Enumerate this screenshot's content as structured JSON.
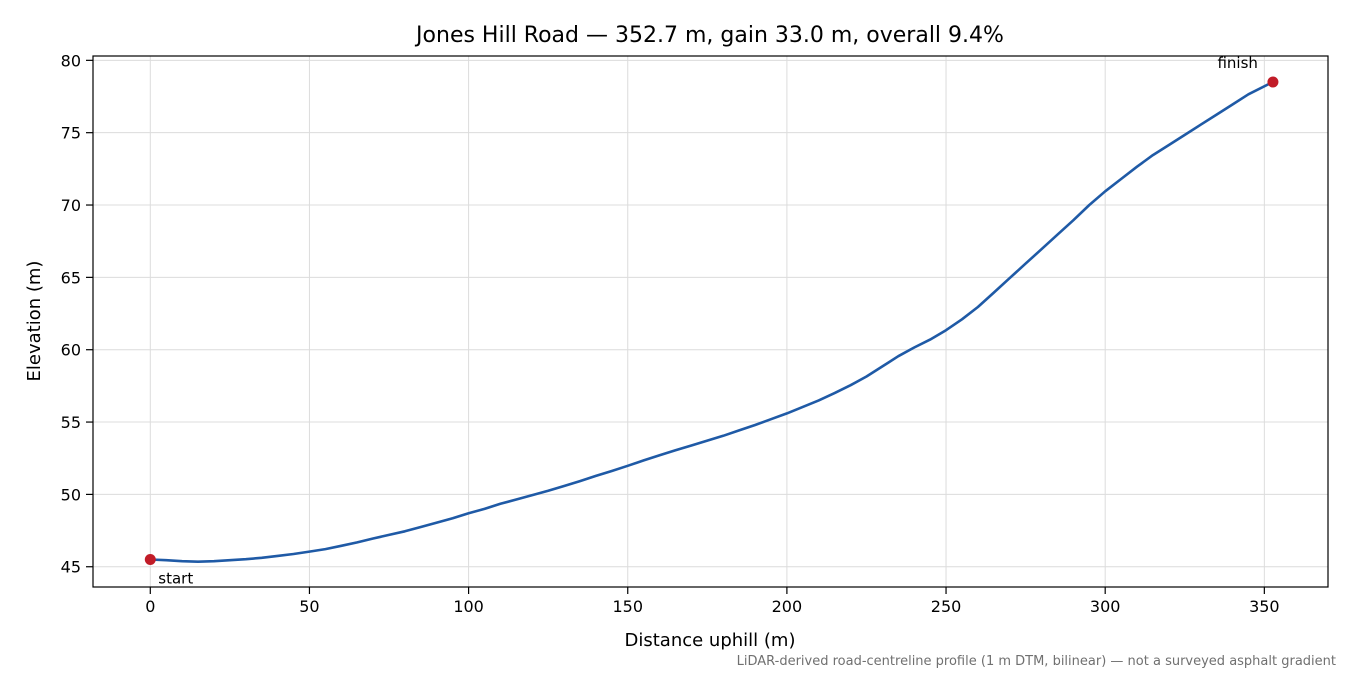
{
  "chart_data": {
    "type": "line",
    "title": "Jones Hill Road — 352.7 m, gain 33.0 m, overall 9.4%",
    "xlabel": "Distance uphill (m)",
    "ylabel": "Elevation (m)",
    "xlim": [
      -18,
      370
    ],
    "ylim": [
      43.6,
      80.3
    ],
    "xticks": [
      "0",
      "50",
      "100",
      "150",
      "200",
      "250",
      "300",
      "350"
    ],
    "yticks": [
      "45",
      "50",
      "55",
      "60",
      "65",
      "70",
      "75",
      "80"
    ],
    "grid": true,
    "line_color": "#1f5aa6",
    "marker_color": "#c11c28",
    "series": [
      {
        "x": [
          0,
          5,
          10,
          15,
          20,
          25,
          30,
          35,
          40,
          45,
          50,
          55,
          60,
          65,
          70,
          75,
          80,
          85,
          90,
          95,
          100,
          105,
          110,
          115,
          120,
          125,
          130,
          135,
          140,
          145,
          150,
          155,
          160,
          165,
          170,
          175,
          180,
          185,
          190,
          195,
          200,
          205,
          210,
          215,
          220,
          225,
          230,
          235,
          240,
          245,
          250,
          255,
          260,
          265,
          270,
          275,
          280,
          285,
          290,
          295,
          300,
          305,
          310,
          315,
          320,
          325,
          330,
          335,
          340,
          345,
          352.7
        ],
        "y": [
          45.5,
          45.45,
          45.38,
          45.35,
          45.38,
          45.45,
          45.52,
          45.62,
          45.75,
          45.88,
          46.05,
          46.22,
          46.45,
          46.68,
          46.95,
          47.2,
          47.45,
          47.75,
          48.05,
          48.35,
          48.7,
          49.0,
          49.35,
          49.65,
          49.95,
          50.25,
          50.58,
          50.92,
          51.28,
          51.62,
          51.98,
          52.35,
          52.7,
          53.05,
          53.38,
          53.72,
          54.05,
          54.42,
          54.8,
          55.2,
          55.6,
          56.05,
          56.5,
          57.0,
          57.55,
          58.15,
          58.85,
          59.55,
          60.15,
          60.7,
          61.35,
          62.1,
          62.95,
          63.95,
          64.95,
          65.95,
          66.95,
          67.95,
          68.95,
          70.0,
          70.95,
          71.8,
          72.65,
          73.45,
          74.15,
          74.85,
          75.55,
          76.25,
          76.95,
          77.65,
          78.5
        ]
      }
    ],
    "annotations": [
      {
        "label": "start",
        "x": 0,
        "y": 45.5
      },
      {
        "label": "finish",
        "x": 352.7,
        "y": 78.5
      }
    ],
    "caption": "LiDAR-derived road-centreline profile (1 m DTM, bilinear) — not a surveyed asphalt gradient"
  }
}
